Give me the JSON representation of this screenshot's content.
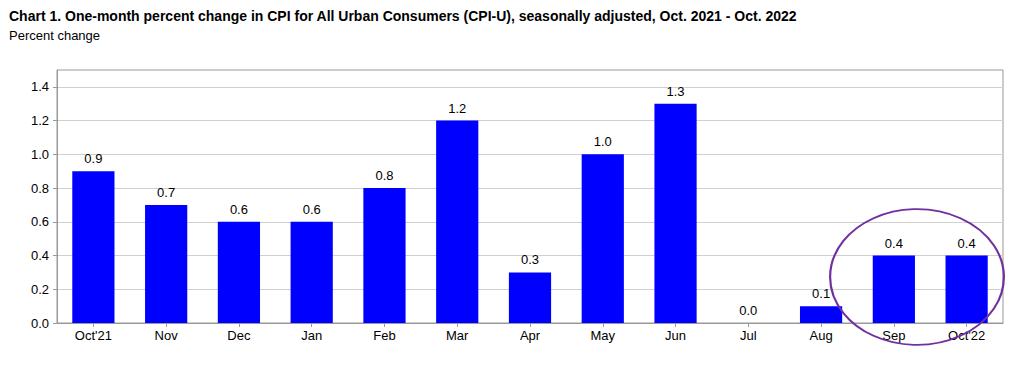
{
  "chart_data": {
    "type": "bar",
    "title": "Chart 1. One-month percent change in CPI for All Urban Consumers (CPI-U), seasonally adjusted, Oct. 2021 - Oct. 2022",
    "subtitle": "Percent change",
    "categories": [
      "Oct'21",
      "Nov",
      "Dec",
      "Jan",
      "Feb",
      "Mar",
      "Apr",
      "May",
      "Jun",
      "Jul",
      "Aug",
      "Sep",
      "Oct'22"
    ],
    "values": [
      0.9,
      0.7,
      0.6,
      0.6,
      0.8,
      1.2,
      0.3,
      1.0,
      1.3,
      0.0,
      0.1,
      0.4,
      0.4
    ],
    "value_labels": [
      "0.9",
      "0.7",
      "0.6",
      "0.6",
      "0.8",
      "1.2",
      "0.3",
      "1.0",
      "1.3",
      "0.0",
      "0.1",
      "0.4",
      "0.4"
    ],
    "color": "#0000ff",
    "ylim": [
      0,
      1.5
    ],
    "yticks": [
      {
        "value": 0,
        "label": "0.0"
      },
      0.2,
      0.4,
      0.6,
      0.8,
      {
        "value": 1,
        "label": "1.0"
      },
      1.2,
      1.4
    ],
    "grid": true,
    "data_labels": true
  }
}
